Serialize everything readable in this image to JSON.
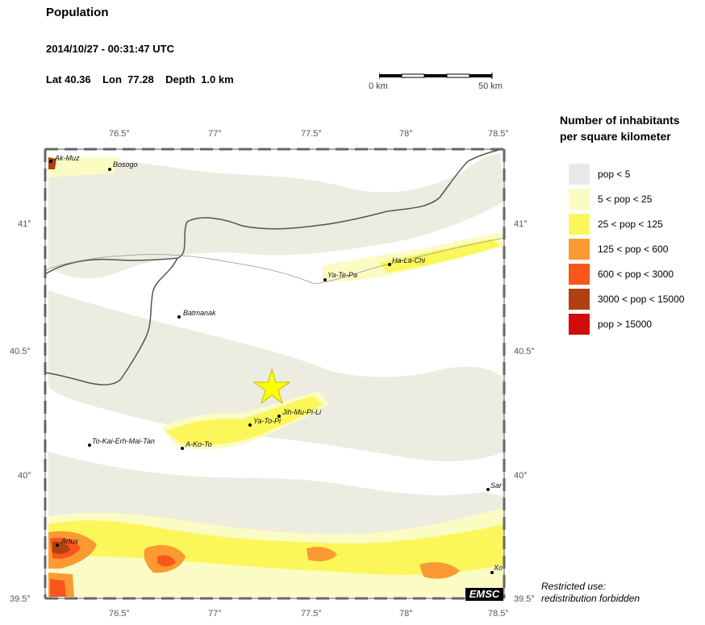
{
  "header": {
    "title": "Population",
    "datetime": "2014/10/27 - 00:31:47 UTC",
    "lat_label": "Lat 40.36",
    "lon_label": "Lon  77.28",
    "depth_label": "Depth  1.0 km"
  },
  "scale_bar": {
    "start_label": "0 km",
    "end_label": "50 km"
  },
  "legend": {
    "title_line1": "Number of inhabitants",
    "title_line2": "per square kilometer",
    "items": [
      {
        "label": "pop < 5",
        "color": "#e8e8e8"
      },
      {
        "label": "5 < pop < 25",
        "color": "#fbfbc4"
      },
      {
        "label": "25 < pop < 125",
        "color": "#fbf75b"
      },
      {
        "label": "125 < pop < 600",
        "color": "#fb9a33"
      },
      {
        "label": "600 < pop < 3000",
        "color": "#f7571a"
      },
      {
        "label": "3000 < pop < 15000",
        "color": "#b0400f"
      },
      {
        "label": "pop > 15000",
        "color": "#d00c0c"
      }
    ]
  },
  "map": {
    "lon_ticks": [
      "76.5°",
      "77°",
      "77.5°",
      "78°",
      "78.5°"
    ],
    "lat_ticks": [
      "41°",
      "40.5°",
      "40°",
      "39.5°"
    ],
    "cities": [
      {
        "name": "Ak-Muz"
      },
      {
        "name": "Bosogo"
      },
      {
        "name": "Batmanak"
      },
      {
        "name": "Ya-Te-Pa"
      },
      {
        "name": "Ha-La-Chi"
      },
      {
        "name": "Jih-Mu-Pi-Li"
      },
      {
        "name": "Ya-To-Pi"
      },
      {
        "name": "To-Kai-Erh-Mai-Tan"
      },
      {
        "name": "A-Ko-To"
      },
      {
        "name": "Sar"
      },
      {
        "name": "Artux"
      },
      {
        "name": "Xo"
      }
    ],
    "epicenter_color": "#ffff00",
    "emsc_label": "EMSC"
  },
  "footer": {
    "restricted_line1": "Restricted use:",
    "restricted_line2": "redistribution forbidden"
  }
}
